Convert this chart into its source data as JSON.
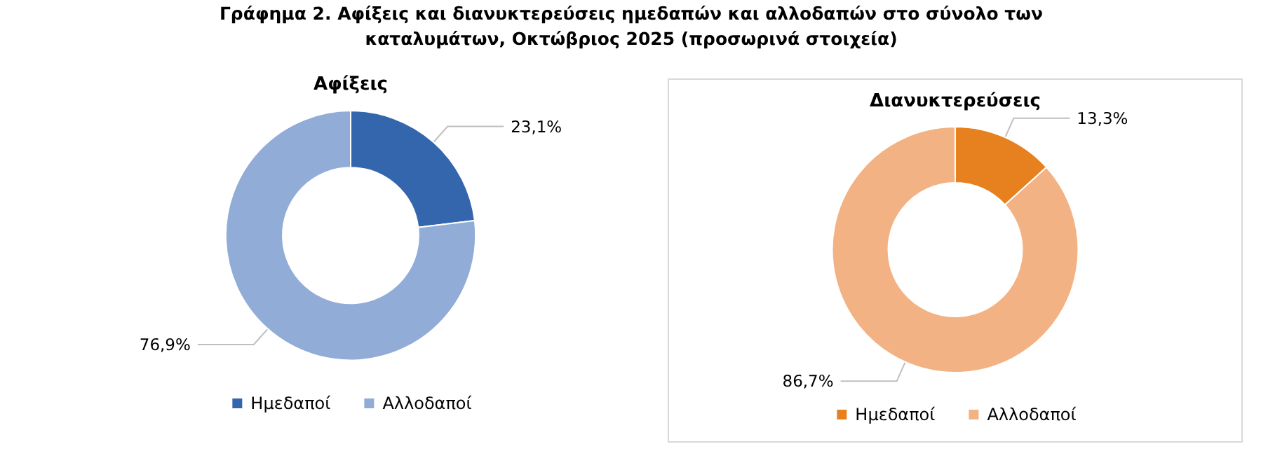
{
  "chart_data": [
    {
      "type": "donut",
      "title": "Αφίξεις",
      "annotations": [
        "Γράφημα 2. Αφίξεις και διανυκτερεύσεις ημεδαπών και αλλοδαπών στο σύνολο των καταλυμάτων, Οκτώβριος 2025  (προσωρινά στοιχεία)"
      ],
      "categories": [
        "Ημεδαποί",
        "Αλλοδαποί"
      ],
      "values": [
        23.1,
        76.9
      ],
      "value_labels": [
        "23,1%",
        "76,9%"
      ],
      "colors": [
        "#3466ad",
        "#92acd8"
      ],
      "legend": "bottom"
    },
    {
      "type": "donut",
      "title": "Διανυκτερεύσεις",
      "categories": [
        "Ημεδαποί",
        "Αλλοδαποί"
      ],
      "values": [
        13.3,
        86.7
      ],
      "value_labels": [
        "13,3%",
        "86,7%"
      ],
      "colors": [
        "#e7801f",
        "#f3b284"
      ],
      "legend": "bottom"
    }
  ]
}
